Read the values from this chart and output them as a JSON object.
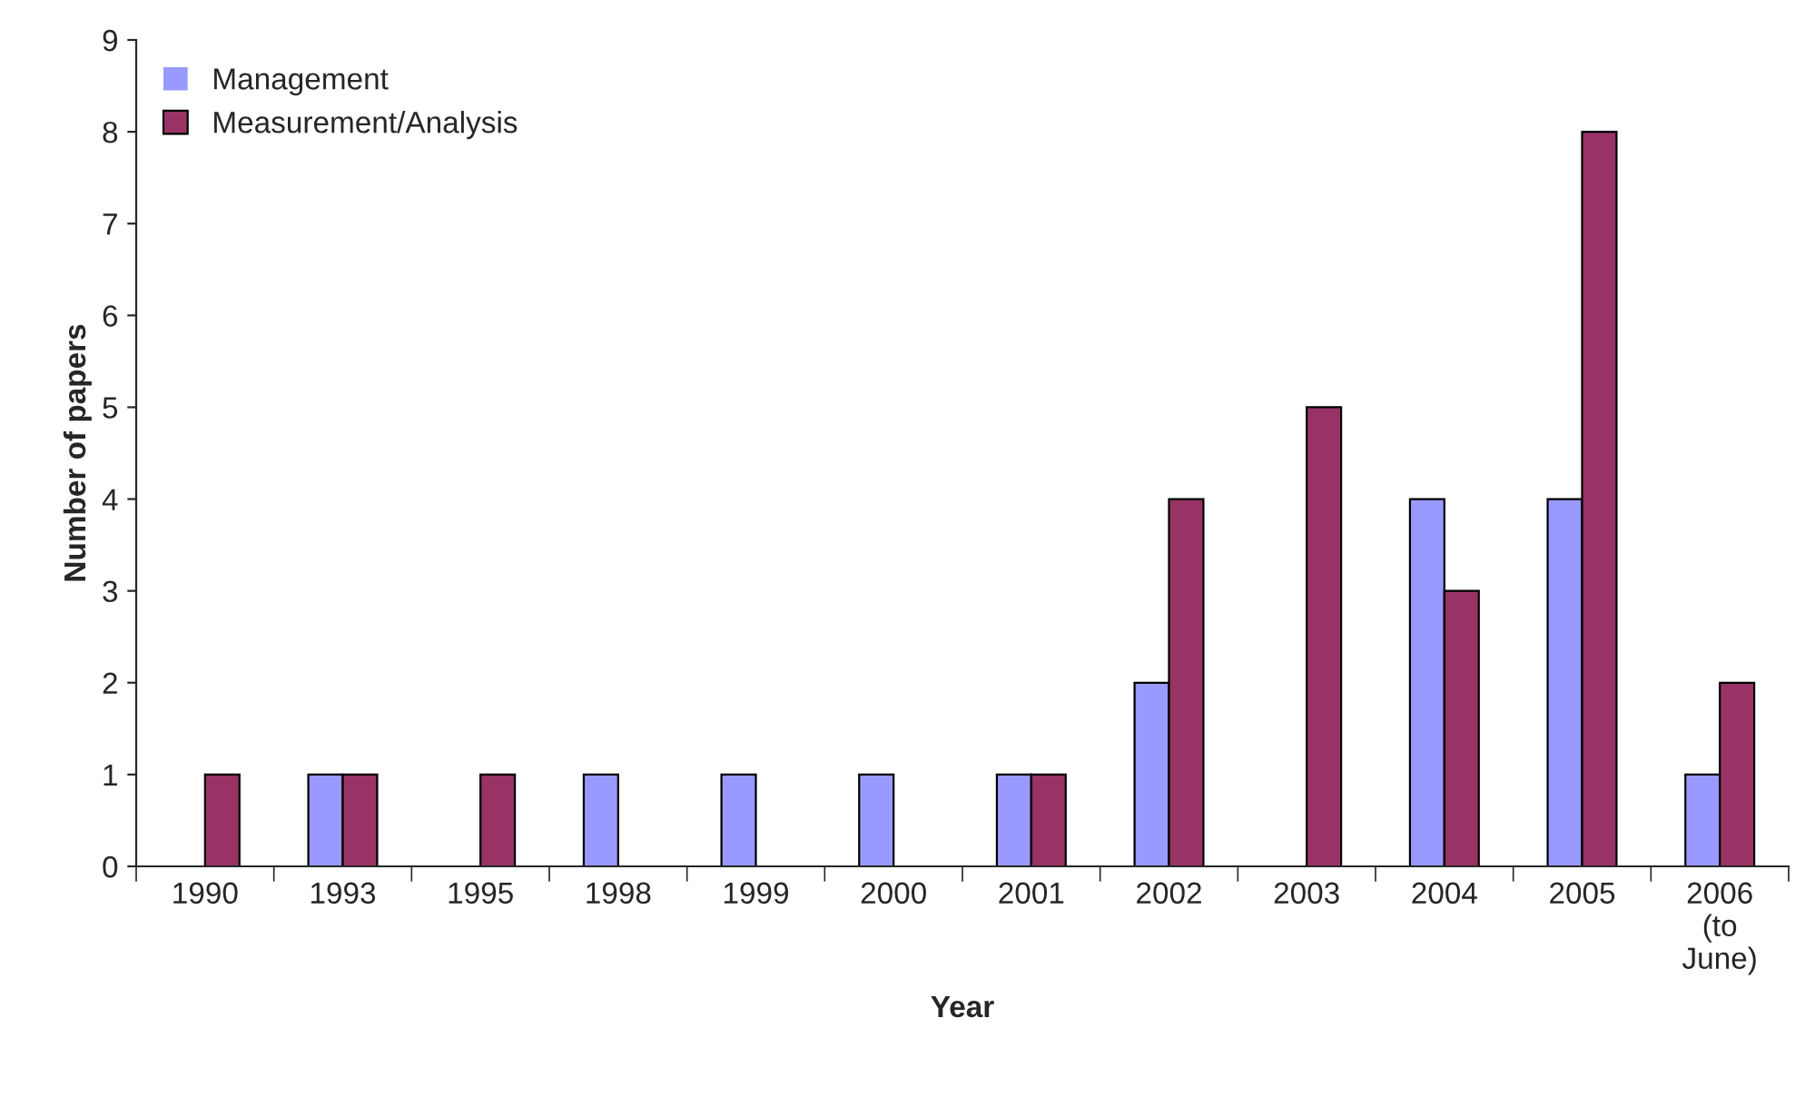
{
  "chart_data": {
    "type": "bar",
    "xlabel": "Year",
    "ylabel": "Number of papers",
    "categories": [
      "1990",
      "1993",
      "1995",
      "1998",
      "1999",
      "2000",
      "2001",
      "2002",
      "2003",
      "2004",
      "2005",
      "2006\n(to\nJune)"
    ],
    "series": [
      {
        "name": "Management",
        "color": "#9999ff",
        "values": [
          0,
          1,
          0,
          1,
          1,
          1,
          1,
          2,
          0,
          4,
          4,
          1
        ]
      },
      {
        "name": "Measurement/Analysis",
        "color": "#993366",
        "values": [
          1,
          1,
          1,
          0,
          0,
          0,
          1,
          4,
          5,
          3,
          8,
          2
        ]
      }
    ],
    "ylim": [
      0,
      9
    ],
    "yticks": [
      0,
      1,
      2,
      3,
      4,
      5,
      6,
      7,
      8,
      9
    ],
    "grid": false,
    "legend": "top left"
  }
}
